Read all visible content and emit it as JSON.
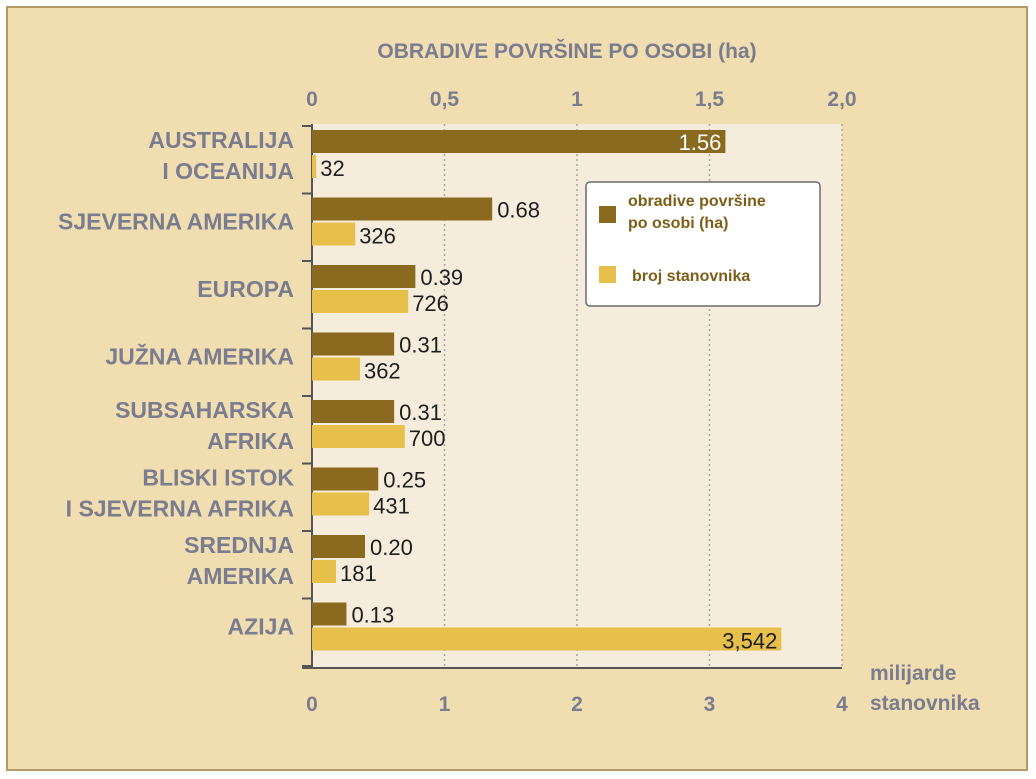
{
  "chart_data": {
    "type": "bar",
    "title": "OBRADIVE POVRŠINE PO OSOBI (ha)",
    "categories": [
      [
        "AUSTRALIJA",
        "I OCEANIJA"
      ],
      [
        "SJEVERNA AMERIKA"
      ],
      [
        "EUROPA"
      ],
      [
        "JUŽNA AMERIKA"
      ],
      [
        "SUBSAHARSKA",
        "AFRIKA"
      ],
      [
        "BLISKI ISTOK",
        "I SJEVERNA AFRIKA"
      ],
      [
        "SREDNJA",
        "AMERIKA"
      ],
      [
        "AZIJA"
      ]
    ],
    "series": [
      {
        "name": "obradive površine po osobi (ha)",
        "axis": "top",
        "color": "#8a6a1f",
        "values": [
          1.56,
          0.68,
          0.39,
          0.31,
          0.31,
          0.25,
          0.2,
          0.13
        ],
        "labels": [
          "1.56",
          "0.68",
          "0.39",
          "0.31",
          "0.31",
          "0.25",
          "0.20",
          "0.13"
        ]
      },
      {
        "name": "broj stanovnika",
        "axis": "bottom",
        "color": "#e7bf4b",
        "values": [
          32,
          326,
          726,
          362,
          700,
          431,
          181,
          3542
        ],
        "labels": [
          "32",
          "326",
          "726",
          "362",
          "700",
          "431",
          "181",
          "3,542"
        ]
      }
    ],
    "top_axis": {
      "label": "OBRADIVE POVRŠINE PO OSOBI (ha)",
      "range": [
        0,
        2.0
      ],
      "ticks": [
        0,
        0.5,
        1,
        1.5,
        2.0
      ],
      "tick_labels": [
        "0",
        "0,5",
        "1",
        "1,5",
        "2,0"
      ]
    },
    "bottom_axis": {
      "label": [
        "milijarde",
        "stanovnika"
      ],
      "range": [
        0,
        4
      ],
      "ticks": [
        0,
        1,
        2,
        3,
        4
      ],
      "tick_labels": [
        "0",
        "1",
        "2",
        "3",
        "4"
      ]
    },
    "legend": {
      "position": "top-right",
      "entries": [
        [
          "obradive površine",
          "po osobi  (ha)"
        ],
        [
          "broj stanovnika"
        ]
      ]
    },
    "colors": {
      "background": "#f0ddb0",
      "plot_background": "#f5ecdc",
      "bar_dark": "#8a6a1f",
      "bar_light": "#e7bf4b",
      "axis_text": "#7a7c8f"
    }
  }
}
